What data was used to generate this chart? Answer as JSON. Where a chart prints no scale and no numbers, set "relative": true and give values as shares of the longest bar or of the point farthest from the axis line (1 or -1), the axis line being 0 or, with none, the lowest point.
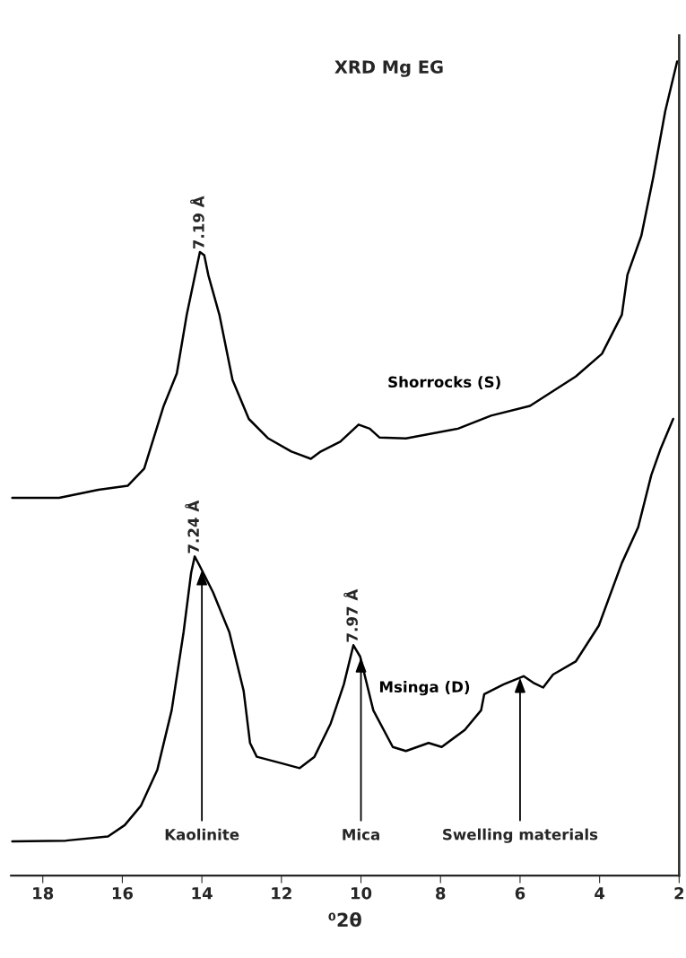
{
  "chart_data": {
    "type": "line",
    "title": "XRD Mg EG",
    "xlabel": "⁰2θ",
    "relative": true,
    "xlim": [
      18.8,
      2
    ],
    "xticks": [
      18,
      16,
      14,
      12,
      10,
      8,
      6,
      4,
      2
    ],
    "grid": false,
    "legend": false,
    "marker": "none",
    "line_style": "solid",
    "series": [
      {
        "name": "Shorrocks (S)",
        "color": "#000000",
        "x": [
          18.77,
          17.59,
          16.6,
          15.86,
          15.45,
          14.96,
          14.63,
          14.38,
          14.17,
          14.05,
          13.94,
          13.84,
          13.56,
          13.23,
          12.82,
          12.33,
          11.75,
          11.26,
          11.01,
          10.52,
          10.06,
          9.78,
          9.53,
          8.87,
          7.56,
          6.73,
          5.75,
          4.6,
          3.94,
          3.44,
          3.3,
          2.95,
          2.65,
          2.35,
          2.05
        ],
        "values": [
          0.464,
          0.464,
          0.474,
          0.479,
          0.5,
          0.577,
          0.617,
          0.689,
          0.738,
          0.766,
          0.762,
          0.738,
          0.689,
          0.609,
          0.561,
          0.537,
          0.521,
          0.512,
          0.521,
          0.533,
          0.554,
          0.549,
          0.538,
          0.537,
          0.549,
          0.565,
          0.577,
          0.613,
          0.641,
          0.689,
          0.738,
          0.786,
          0.858,
          0.939,
          1.0
        ]
      },
      {
        "name": "Msinga (D)",
        "color": "#000000",
        "x": [
          18.77,
          17.42,
          16.36,
          15.94,
          15.53,
          15.12,
          14.76,
          14.46,
          14.27,
          14.18,
          14.05,
          13.72,
          13.31,
          12.95,
          12.79,
          12.62,
          12.0,
          11.54,
          11.17,
          10.76,
          10.43,
          10.19,
          10.02,
          9.69,
          9.2,
          8.87,
          8.3,
          7.97,
          7.39,
          6.98,
          6.9,
          6.41,
          5.91,
          5.67,
          5.42,
          5.17,
          4.6,
          4.02,
          3.44,
          3.03,
          2.7,
          2.46,
          2.15
        ],
        "values": [
          0.042,
          0.043,
          0.048,
          0.062,
          0.086,
          0.13,
          0.203,
          0.299,
          0.372,
          0.392,
          0.38,
          0.348,
          0.299,
          0.227,
          0.163,
          0.146,
          0.138,
          0.132,
          0.146,
          0.187,
          0.235,
          0.283,
          0.269,
          0.203,
          0.158,
          0.153,
          0.163,
          0.158,
          0.179,
          0.203,
          0.223,
          0.235,
          0.245,
          0.237,
          0.231,
          0.247,
          0.263,
          0.307,
          0.384,
          0.428,
          0.492,
          0.525,
          0.561
        ]
      }
    ],
    "annotations": [
      {
        "text": "7.19 Å",
        "x": 14.05,
        "y": 0.766
      },
      {
        "text": "7.24 Å",
        "x": 14.18,
        "y": 0.392
      },
      {
        "text": "7.97 Å",
        "x": 10.19,
        "y": 0.283
      },
      {
        "text": "Kaolinite",
        "x": 14,
        "y": 0.375
      },
      {
        "text": "Mica",
        "x": 10,
        "y": 0.268
      },
      {
        "text": "Swelling materials",
        "x": 6,
        "y": 0.243
      }
    ]
  }
}
